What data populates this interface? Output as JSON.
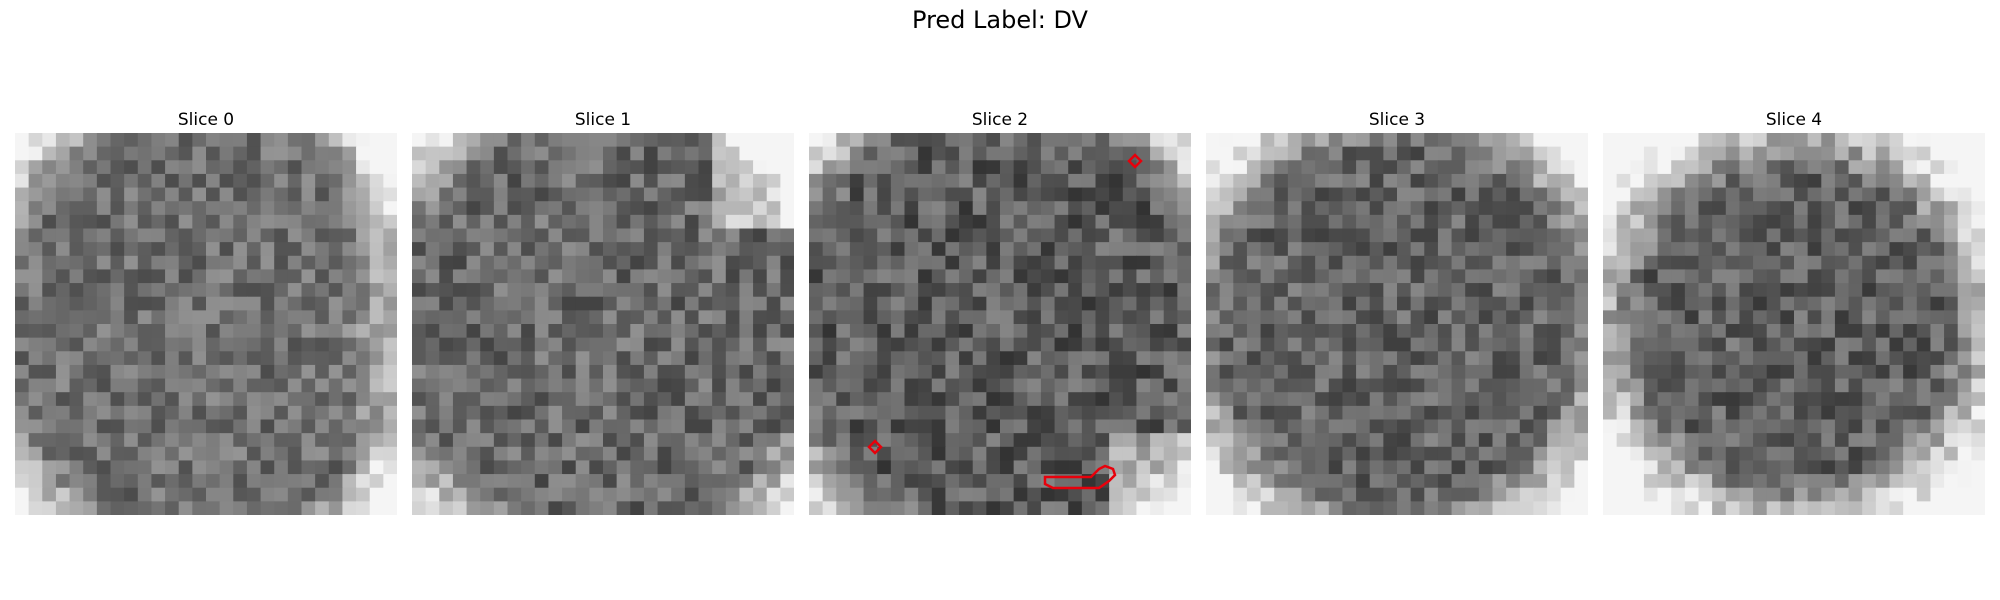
{
  "figure": {
    "title": "Pred Label: DV"
  },
  "slices": [
    {
      "title": "Slice 0",
      "grid": 28,
      "base": 112,
      "noise": 36,
      "bright_corner": "right",
      "outline_color": ""
    },
    {
      "title": "Slice 1",
      "grid": 28,
      "base": 105,
      "noise": 40,
      "bright_corner": "top-right",
      "outline_color": ""
    },
    {
      "title": "Slice 2",
      "grid": 28,
      "base": 92,
      "noise": 42,
      "bright_corner": "bottom-right",
      "outline_color": "#e8000b"
    },
    {
      "title": "Slice 3",
      "grid": 28,
      "base": 100,
      "noise": 38,
      "bright_corner": "edges",
      "outline_color": ""
    },
    {
      "title": "Slice 4",
      "grid": 28,
      "base": 96,
      "noise": 40,
      "bright_corner": "edges-strong",
      "outline_color": ""
    }
  ]
}
